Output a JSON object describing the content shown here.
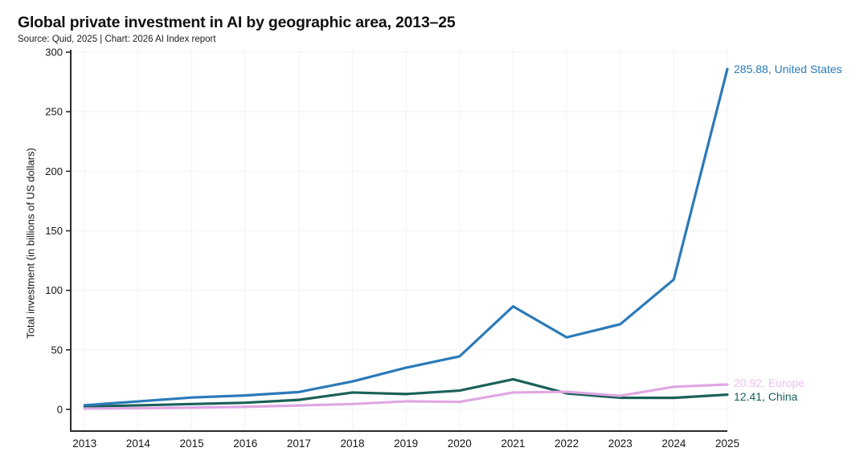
{
  "header": {
    "title": "Global private investment in AI by geographic area, 2013–25",
    "source": "Source: Quid, 2025 | Chart: 2026 AI Index report"
  },
  "chart_data": {
    "type": "line",
    "title": "Global private investment in AI by geographic area, 2013–25",
    "source": "Source: Quid, 2025 | Chart: 2026 AI Index report",
    "xlabel": "",
    "ylabel": "Total investment (in billions of US dollars)",
    "categories": [
      "2013",
      "2014",
      "2015",
      "2016",
      "2017",
      "2018",
      "2019",
      "2020",
      "2021",
      "2022",
      "2023",
      "2024",
      "2025"
    ],
    "yticks": [
      0,
      50,
      100,
      150,
      200,
      250,
      300
    ],
    "ylim": [
      0,
      300
    ],
    "grid": true,
    "grid_color": "#f3f1f4",
    "axis_color": "#2a2a2a",
    "legend_position": "end-of-line labels at right",
    "series": [
      {
        "name": "United States",
        "color": "#2b7ab9",
        "label_color": "#2b7ab9",
        "end_label": "285.88, United States",
        "end_value": 285.88,
        "values": [
          3.5,
          6.7,
          10.0,
          11.7,
          14.6,
          23.5,
          35.0,
          44.5,
          86.5,
          60.5,
          71.5,
          109.1,
          285.88
        ]
      },
      {
        "name": "Europe",
        "color": "#dfa7e3",
        "label_color": "#efbff1",
        "end_label": "20.92, Europe",
        "end_value": 20.92,
        "values": [
          0.7,
          1.0,
          1.5,
          2.2,
          3.3,
          4.5,
          6.8,
          6.3,
          14.2,
          14.8,
          11.4,
          19.0,
          20.92
        ]
      },
      {
        "name": "China",
        "color": "#1a6159",
        "label_color": "#1a6159",
        "end_label": "12.41, China",
        "end_value": 12.41,
        "values": [
          2.4,
          3.4,
          4.5,
          5.6,
          8.0,
          14.2,
          12.9,
          15.8,
          25.3,
          13.5,
          9.8,
          9.7,
          12.41
        ]
      }
    ],
    "annotations": {
      "us": "285.88, United States",
      "europe": "20.92, Europe",
      "china": "12.41, China"
    }
  }
}
